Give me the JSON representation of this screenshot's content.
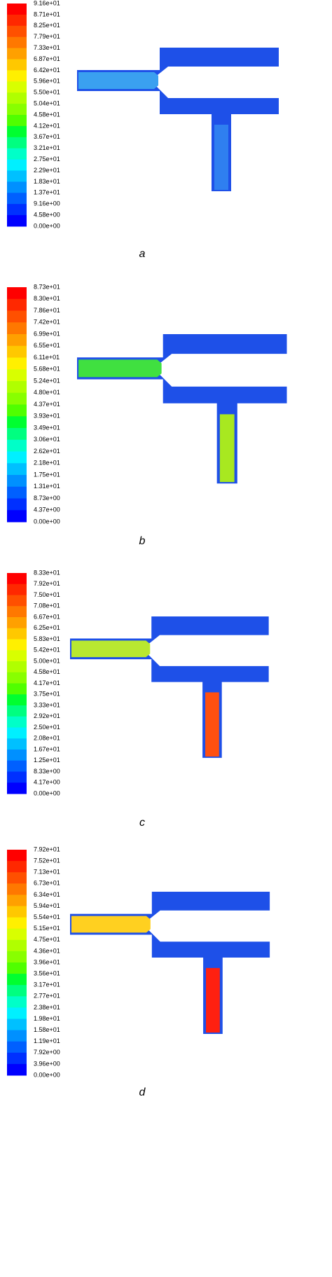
{
  "panels": [
    {
      "label": "a",
      "scale_labels": [
        "9.16e+01",
        "8.71e+01",
        "8.25e+01",
        "7.79e+01",
        "7.33e+01",
        "6.87e+01",
        "6.42e+01",
        "5.96e+01",
        "5.50e+01",
        "5.04e+01",
        "4.58e+01",
        "4.12e+01",
        "3.67e+01",
        "3.21e+01",
        "2.75e+01",
        "2.29e+01",
        "1.83e+01",
        "1.37e+01",
        "9.16e+00",
        "4.58e+00",
        "0.00e+00"
      ]
    },
    {
      "label": "b",
      "scale_labels": [
        "8.73e+01",
        "8.30e+01",
        "7.86e+01",
        "7.42e+01",
        "6.99e+01",
        "6.55e+01",
        "6.11e+01",
        "5.68e+01",
        "5.24e+01",
        "4.80e+01",
        "4.37e+01",
        "3.93e+01",
        "3.49e+01",
        "3.06e+01",
        "2.62e+01",
        "2.18e+01",
        "1.75e+01",
        "1.31e+01",
        "8.73e+00",
        "4.37e+00",
        "0.00e+00"
      ]
    },
    {
      "label": "c",
      "scale_labels": [
        "8.33e+01",
        "7.92e+01",
        "7.50e+01",
        "7.08e+01",
        "6.67e+01",
        "6.25e+01",
        "5.83e+01",
        "5.42e+01",
        "5.00e+01",
        "4.58e+01",
        "4.17e+01",
        "3.75e+01",
        "3.33e+01",
        "2.92e+01",
        "2.50e+01",
        "2.08e+01",
        "1.67e+01",
        "1.25e+01",
        "8.33e+00",
        "4.17e+00",
        "0.00e+00"
      ]
    },
    {
      "label": "d",
      "scale_labels": [
        "7.92e+01",
        "7.52e+01",
        "7.13e+01",
        "6.73e+01",
        "6.34e+01",
        "5.94e+01",
        "5.54e+01",
        "5.15e+01",
        "4.75e+01",
        "4.36e+01",
        "3.96e+01",
        "3.56e+01",
        "3.17e+01",
        "2.77e+01",
        "2.38e+01",
        "1.98e+01",
        "1.58e+01",
        "1.19e+01",
        "7.92e+00",
        "3.96e+00",
        "0.00e+00"
      ]
    }
  ]
}
